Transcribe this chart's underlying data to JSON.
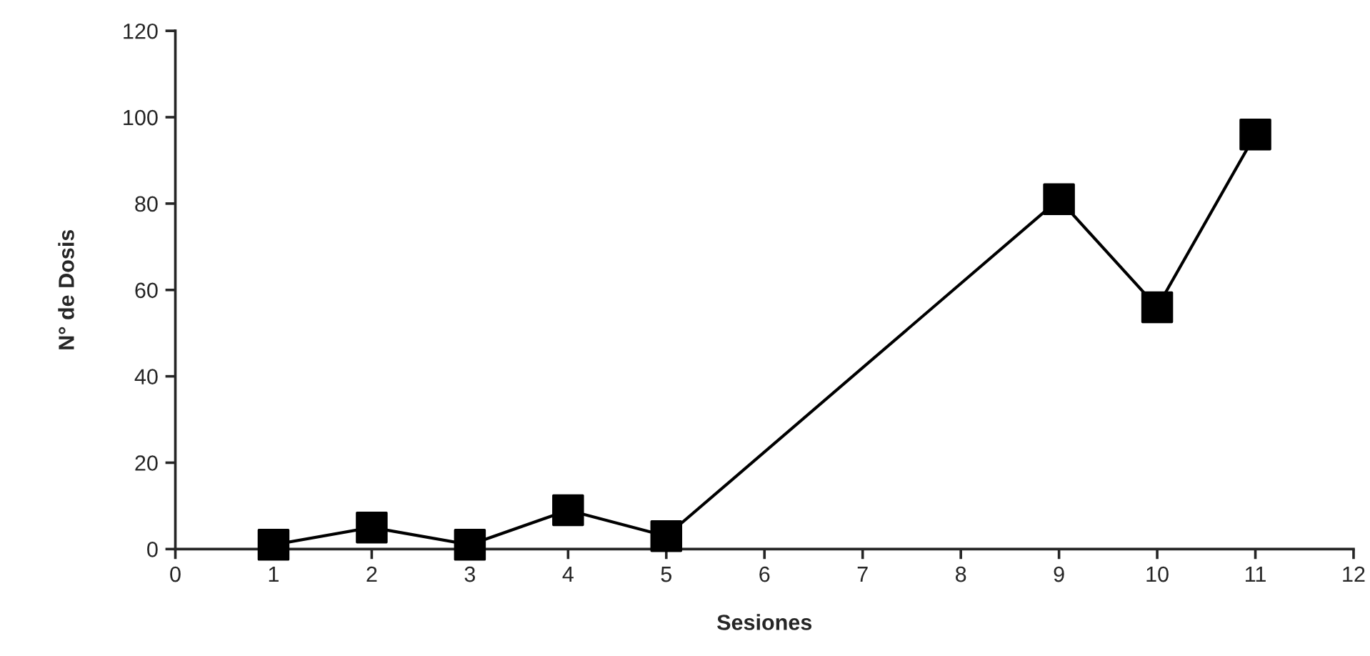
{
  "chart_data": {
    "type": "line",
    "xlabel": "Sesiones",
    "ylabel": "N° de Dosis",
    "x": [
      1,
      2,
      3,
      4,
      5,
      9,
      10,
      11
    ],
    "series": [
      {
        "color": "#000000",
        "values": [
          1,
          5,
          1,
          9,
          3,
          81,
          56,
          96
        ]
      }
    ],
    "xlim": [
      0,
      12
    ],
    "xticks": [
      0,
      1,
      2,
      3,
      4,
      5,
      6,
      7,
      8,
      9,
      10,
      11,
      12
    ],
    "ylim": [
      0,
      120
    ],
    "yticks": [
      0,
      20,
      40,
      60,
      80,
      100,
      120
    ],
    "marker": "square",
    "line_style": "solid",
    "grid": false,
    "legend": false
  }
}
